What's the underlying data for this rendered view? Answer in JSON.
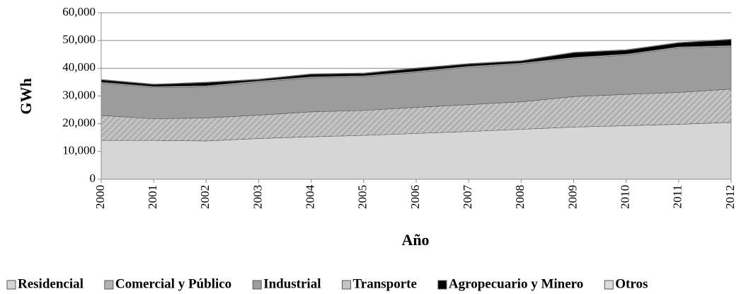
{
  "chart_data": {
    "type": "stacked_area",
    "x_label": "Año",
    "y_label": "GWh",
    "categories": [
      "2000",
      "2001",
      "2002",
      "2003",
      "2004",
      "2005",
      "2006",
      "2007",
      "2008",
      "2009",
      "2010",
      "2011",
      "2012"
    ],
    "ylim": [
      0,
      60000
    ],
    "yticks": [
      0,
      {
        "value": 10000,
        "label": "10,000"
      },
      {
        "value": 20000,
        "label": "20,000"
      },
      {
        "value": 30000,
        "label": "30,000"
      },
      {
        "value": 40000,
        "label": "40,000"
      },
      {
        "value": 50000,
        "label": "50,000"
      },
      {
        "value": 60000,
        "label": "60,000"
      }
    ],
    "grid": true,
    "legend": "bottom",
    "series": [
      {
        "name": "Residencial",
        "color": "#d6d6d6",
        "values": [
          14000,
          14000,
          13800,
          14700,
          15300,
          15800,
          16500,
          17200,
          18000,
          18800,
          19300,
          19800,
          20500
        ]
      },
      {
        "name": "Comercial y Público",
        "color": "#b3b3b3",
        "values": [
          9000,
          7800,
          8300,
          8400,
          9000,
          9000,
          9400,
          9700,
          9900,
          11000,
          11300,
          11500,
          12000
        ]
      },
      {
        "name": "Industrial",
        "color": "#9c9c9c",
        "values": [
          11600,
          11200,
          11200,
          11900,
          12200,
          12100,
          12600,
          13400,
          13600,
          13700,
          14100,
          16000,
          15300
        ]
      },
      {
        "name": "Transporte",
        "color": "#c4c4c4",
        "values": [
          400,
          400,
          400,
          400,
          400,
          400,
          400,
          400,
          400,
          400,
          400,
          400,
          400
        ]
      },
      {
        "name": "Agropecuario y Minero",
        "color": "#000000",
        "values": [
          800,
          700,
          1100,
          500,
          900,
          800,
          1000,
          800,
          700,
          1700,
          1400,
          1400,
          2100
        ]
      },
      {
        "name": "Otros",
        "color": "#dcdcdc",
        "values": [
          200,
          200,
          200,
          200,
          200,
          200,
          200,
          200,
          200,
          200,
          200,
          200,
          200
        ]
      }
    ]
  }
}
